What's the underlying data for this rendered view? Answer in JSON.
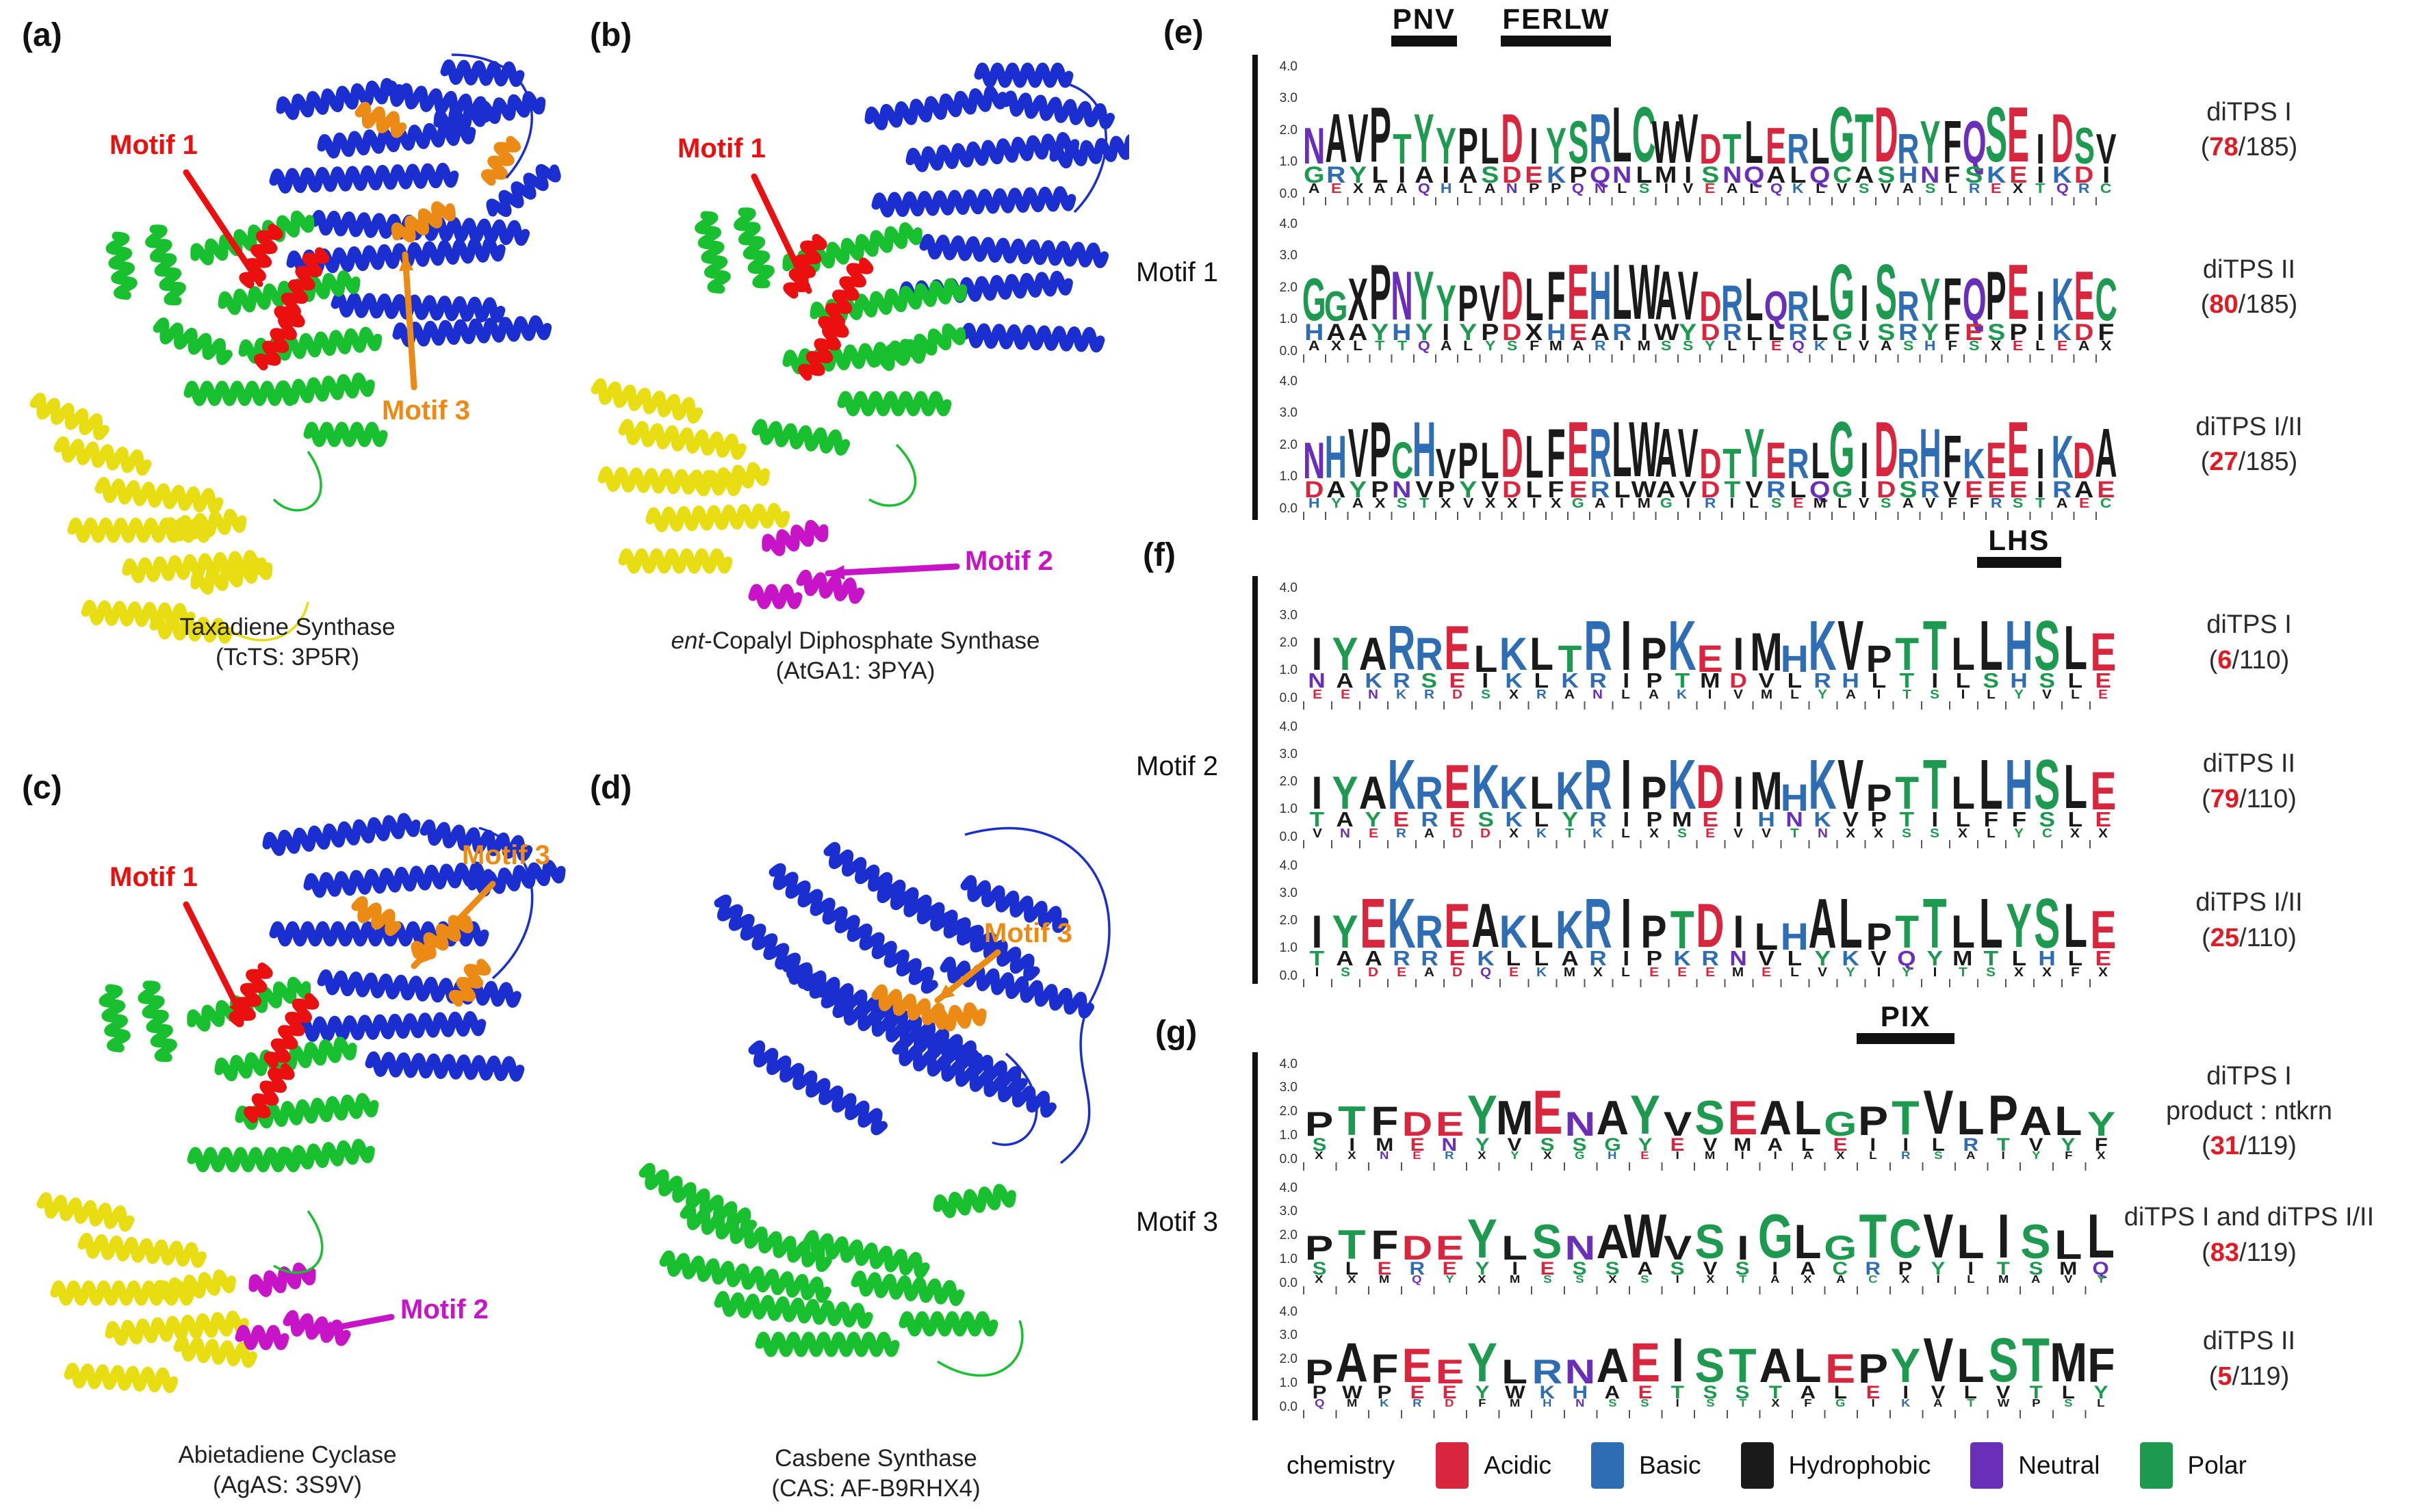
{
  "colors": {
    "acidic": "#d7263d",
    "basic": "#2e6db4",
    "hydrophobic": "#1a1a1a",
    "neutral": "#6a2fb8",
    "polar": "#1d9a4f",
    "ribbon_blue": "#1b2fd0",
    "ribbon_green": "#18bf2e",
    "ribbon_yellow": "#e8dd12",
    "motif_red": "#ea1010",
    "motif_orange": "#ec8a16",
    "motif_magenta": "#c714c7"
  },
  "structures": [
    {
      "id": "a",
      "label": "(a)",
      "caption": [
        "Taxadiene Synthase",
        "(TcTS: 3P5R)"
      ],
      "motif_tags": [
        {
          "text": "Motif 1",
          "color": "motif_red"
        },
        {
          "text": "Motif 3",
          "color": "motif_orange"
        }
      ]
    },
    {
      "id": "b",
      "label": "(b)",
      "caption": [
        "ent-Copalyl Diphosphate Synthase",
        "(AtGA1:  3PYA)"
      ],
      "italic_prefix": "ent",
      "motif_tags": [
        {
          "text": "Motif 1",
          "color": "motif_red"
        },
        {
          "text": "Motif 2",
          "color": "motif_magenta"
        }
      ]
    },
    {
      "id": "c",
      "label": "(c)",
      "caption": [
        "Abietadiene Cyclase",
        "(AgAS: 3S9V)"
      ],
      "motif_tags": [
        {
          "text": "Motif 1",
          "color": "motif_red"
        },
        {
          "text": "Motif 2",
          "color": "motif_magenta"
        },
        {
          "text": "Motif 3",
          "color": "motif_orange"
        }
      ]
    },
    {
      "id": "d",
      "label": "(d)",
      "caption": [
        "Casbene Synthase",
        "(CAS: AF-B9RHX4)"
      ],
      "motif_tags": [
        {
          "text": "Motif 3",
          "color": "motif_orange"
        }
      ]
    }
  ],
  "axis_ticks": [
    "4.0",
    "3.0",
    "2.0",
    "1.0",
    "0.0"
  ],
  "logo_panels": [
    {
      "id": "e",
      "label": "(e)",
      "motif_label": "Motif 1",
      "annotations": [
        {
          "text": "PNV",
          "start": 4,
          "end": 6
        },
        {
          "text": "FERLW",
          "start": 9,
          "end": 13
        }
      ],
      "rows": [
        {
          "group_lines": [
            "diTPS I"
          ],
          "count": "78",
          "total": "185",
          "stacks": [
            "N|G|A",
            "A|R|E",
            "V|Y|X",
            "P|L|A",
            "T|I|A",
            "Y|A|Q",
            "Y|I|H",
            "P|A|L",
            "L|S|A",
            "D|D|N",
            "I|E|P",
            "Y|K|P",
            "S|P|Q",
            "R|Q|N",
            "L|N|L",
            "C|L|S",
            "W|M|I",
            "V|I|V",
            "D|S|E",
            "T|N|A",
            "L|Q|L",
            "E|A|Q",
            "R|L|K",
            "L|Q|L",
            "G|C|V",
            "T|A|S",
            "D|S|V",
            "R|H|A",
            "Y|N|S",
            "F|F|L",
            "Q|S|R",
            "S|K|E",
            "E|E|X",
            "I|I|T",
            "D|K|Q",
            "S|D|R",
            "V|I|C"
          ]
        },
        {
          "group_lines": [
            "diTPS II"
          ],
          "count": "80",
          "total": "185",
          "stacks": [
            "G|H|A",
            "G|A|X",
            "X|A|L",
            "P|Y|T",
            "N|H|T",
            "Y|Y|Q",
            "Y|I|A",
            "P|Y|L",
            "V|P|Y",
            "D|D|S",
            "L|X|F",
            "F|H|M",
            "E|E|A",
            "H|A|R",
            "L|R|I",
            "W|I|M",
            "A|W|S",
            "V|Y|S",
            "D|D|Y",
            "R|R|L",
            "L|L|I",
            "Q|L|E",
            "R|R|Q",
            "L|L|K",
            "G|G|L",
            "I|I|V",
            "S|S|A",
            "R|R|S",
            "Y|Y|H",
            "F|F|F",
            "Q|E|S",
            "P|S|X",
            "E|P|E",
            "I|I|L",
            "K|K|E",
            "E|D|A",
            "C|F|X"
          ]
        },
        {
          "group_lines": [
            "diTPS I/II"
          ],
          "count": "27",
          "total": "185",
          "stacks": [
            "N|D|H",
            "H|A|Y",
            "V|Y|A",
            "P|P|X",
            "C|N|S",
            "H|V|T",
            "V|P|X",
            "P|Y|V",
            "L|V|X",
            "D|D|X",
            "L|L|I",
            "F|F|X",
            "E|E|G",
            "R|R|A",
            "L|L|I",
            "W|W|M",
            "A|A|G",
            "V|V|I",
            "D|D|R",
            "T|T|I",
            "Y|V|L",
            "E|R|S",
            "R|L|E",
            "L|Q|M",
            "G|G|L",
            "I|I|V",
            "D|D|S",
            "R|S|A",
            "H|R|V",
            "F|V|F",
            "K|E|F",
            "E|E|R",
            "E|E|S",
            "I|I|T",
            "K|R|A",
            "D|A|E",
            "A|E|C"
          ]
        }
      ]
    },
    {
      "id": "f",
      "label": "(f)",
      "motif_label": "Motif 2",
      "annotations": [
        {
          "text": "LHS",
          "start": 24,
          "end": 26
        }
      ],
      "rows": [
        {
          "group_lines": [
            "diTPS I"
          ],
          "count": "6",
          "total": "110",
          "stacks": [
            "I|N|E",
            "Y|A|E",
            "A|K|N",
            "R|R|K",
            "R|S|R",
            "E|E|D",
            "L|I|S",
            "K|K|X",
            "L|L|R",
            "T|K|A",
            "R|R|N",
            "I|I|L",
            "P|P|A",
            "K|T|K",
            "E|M|I",
            "I|D|V",
            "M|V|M",
            "H|L|L",
            "K|R|Y",
            "V|H|A",
            "P|L|I",
            "T|T|T",
            "T|I|S",
            "L|L|I",
            "L|S|L",
            "H|H|Y",
            "S|S|V",
            "L|L|L",
            "E|E|E"
          ]
        },
        {
          "group_lines": [
            "diTPS II"
          ],
          "count": "79",
          "total": "110",
          "stacks": [
            "I|T|V",
            "Y|A|N",
            "A|Y|E",
            "K|E|R",
            "R|R|A",
            "E|E|D",
            "K|S|D",
            "K|K|X",
            "L|L|K",
            "K|Y|T",
            "R|R|K",
            "I|I|L",
            "P|P|X",
            "K|M|S",
            "D|E|E",
            "I|I|V",
            "M|H|V",
            "H|N|T",
            "K|K|N",
            "V|V|X",
            "P|P|X",
            "T|T|S",
            "T|I|S",
            "L|L|X",
            "L|F|L",
            "H|F|Y",
            "S|S|C",
            "L|L|X",
            "E|E|X"
          ]
        },
        {
          "group_lines": [
            "diTPS I/II"
          ],
          "count": "25",
          "total": "110",
          "stacks": [
            "I|T|I",
            "Y|A|S",
            "E|A|D",
            "K|R|E",
            "R|R|A",
            "E|E|D",
            "A|K|Q",
            "K|L|E",
            "L|L|K",
            "K|A|M",
            "R|R|X",
            "I|I|L",
            "P|P|E",
            "T|K|E",
            "D|R|E",
            "I|N|M",
            "L|V|E",
            "H|L|L",
            "A|Y|V",
            "L|K|Y",
            "P|V|I",
            "T|Q|Y",
            "T|Y|I",
            "L|M|T",
            "L|T|S",
            "Y|L|X",
            "S|H|X",
            "L|L|F",
            "E|E|X"
          ]
        }
      ]
    },
    {
      "id": "g",
      "label": "(g)",
      "motif_label": "Motif 3",
      "annotations": [
        {
          "text": "PIX",
          "start": 17,
          "end": 19
        }
      ],
      "rows": [
        {
          "group_lines": [
            "diTPS I",
            "product : ntkrn"
          ],
          "count": "31",
          "total": "119",
          "stacks": [
            "P|S|X",
            "T|I|X",
            "F|M|N",
            "D|E|E",
            "E|N|R",
            "Y|Y|X",
            "M|V|Y",
            "E|S|X",
            "N|S|G",
            "A|G|H",
            "Y|Y|E",
            "V|E|I",
            "S|V|M",
            "E|M|I",
            "A|A|I",
            "L|L|A",
            "G|E|X",
            "P|I|L",
            "T|I|R",
            "V|L|S",
            "L|R|A",
            "P|T|I",
            "A|V|Y",
            "L|Y|F",
            "Y|F|X"
          ]
        },
        {
          "group_lines": [
            "diTPS I  and diTPS I/II"
          ],
          "count": "83",
          "total": "119",
          "stacks": [
            "P|S|X",
            "T|L|X",
            "F|E|M",
            "D|R|Q",
            "E|E|Y",
            "Y|Y|X",
            "L|I|M",
            "S|E|S",
            "N|S|S",
            "A|S|X",
            "W|A|S",
            "V|S|I",
            "S|V|X",
            "I|S|T",
            "G|I|A",
            "L|A|X",
            "G|C|A",
            "T|R|C",
            "C|P|X",
            "V|Y|I",
            "L|I|L",
            "I|T|M",
            "S|S|A",
            "L|M|V",
            "L|Q|Y"
          ]
        },
        {
          "group_lines": [
            "diTPS II"
          ],
          "count": "5",
          "total": "119",
          "stacks": [
            "P|P|Q",
            "A|W|M",
            "F|P|K",
            "E|E|R",
            "E|E|D",
            "Y|Y|F",
            "L|W|M",
            "R|K|H",
            "N|H|N",
            "A|A|S",
            "E|E|S",
            "I|T|I",
            "S|S|S",
            "T|S|T",
            "A|T|X",
            "L|A|F",
            "E|L|G",
            "P|E|I",
            "Y|I|K",
            "V|V|A",
            "L|L|T",
            "S|V|W",
            "T|T|P",
            "M|L|S",
            "F|Y|L"
          ]
        }
      ]
    }
  ],
  "legend": {
    "title": "chemistry",
    "items": [
      {
        "label": "Acidic",
        "key": "acidic"
      },
      {
        "label": "Basic",
        "key": "basic"
      },
      {
        "label": "Hydrophobic",
        "key": "hydrophobic"
      },
      {
        "label": "Neutral",
        "key": "neutral"
      },
      {
        "label": "Polar",
        "key": "polar"
      }
    ]
  }
}
